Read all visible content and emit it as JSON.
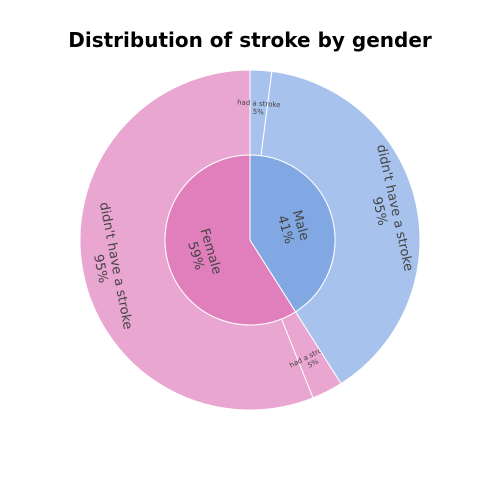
{
  "chart_data": {
    "type": "sunburst",
    "title": "Distribution of stroke by gender",
    "inner": [
      {
        "label": "Female",
        "percent_label": "59%",
        "value": 59,
        "color": "#e07fbc"
      },
      {
        "label": "Male",
        "percent_label": "41%",
        "value": 41,
        "color": "#81a8e3"
      }
    ],
    "outer": [
      {
        "parent": "Female",
        "label": "didn't have a stroke",
        "percent_label": "95%",
        "value": 95,
        "color": "#e9a6d0"
      },
      {
        "parent": "Female",
        "label": "had a stroke",
        "percent_label": "5%",
        "value": 5,
        "color": "#e9a6d0"
      },
      {
        "parent": "Male",
        "label": "didn't have a stroke",
        "percent_label": "95%",
        "value": 95,
        "color": "#a7c2ec"
      },
      {
        "parent": "Male",
        "label": "had a stroke",
        "percent_label": "5%",
        "value": 5,
        "color": "#a7c2ec"
      }
    ]
  }
}
